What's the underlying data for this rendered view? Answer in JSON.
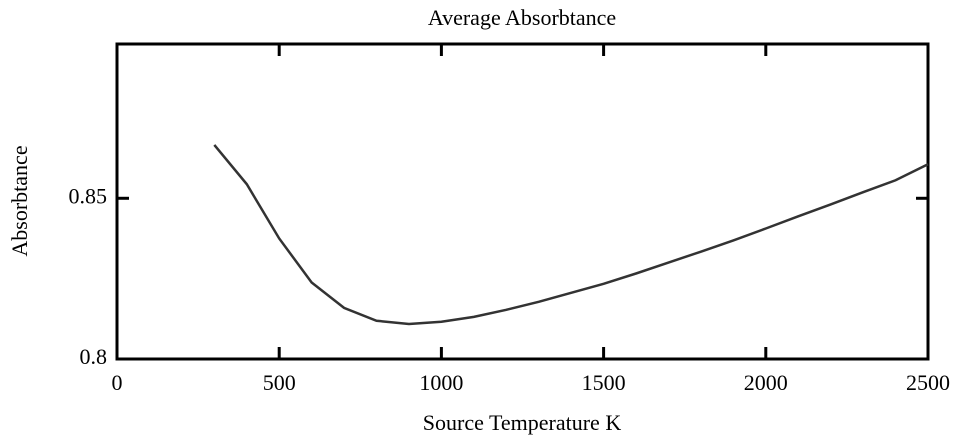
{
  "chart_data": {
    "type": "line",
    "title": "Average Absorbtance",
    "x_label": "Source Temperature   K",
    "y_label": "Absorbtance",
    "x": [
      300,
      400,
      500,
      600,
      700,
      800,
      900,
      1000,
      1100,
      1200,
      1300,
      1400,
      1500,
      1600,
      1700,
      1800,
      1900,
      2000,
      2100,
      2200,
      2300,
      2400,
      2500
    ],
    "series": [
      {
        "name": "Absorbtance",
        "color": "#333333",
        "values": [
          0.8666,
          0.8544,
          0.8375,
          0.8238,
          0.8159,
          0.8119,
          0.8109,
          0.8116,
          0.8131,
          0.8153,
          0.8178,
          0.8206,
          0.8234,
          0.8266,
          0.83,
          0.8334,
          0.8369,
          0.8406,
          0.8444,
          0.8481,
          0.8519,
          0.8556,
          0.8606
        ]
      }
    ],
    "xlim": [
      0,
      2500
    ],
    "xticks": [
      0,
      500,
      1000,
      1500,
      2000,
      2500
    ],
    "ylim": [
      0.8,
      0.898
    ],
    "yticks": [
      0.8,
      0.85
    ]
  }
}
